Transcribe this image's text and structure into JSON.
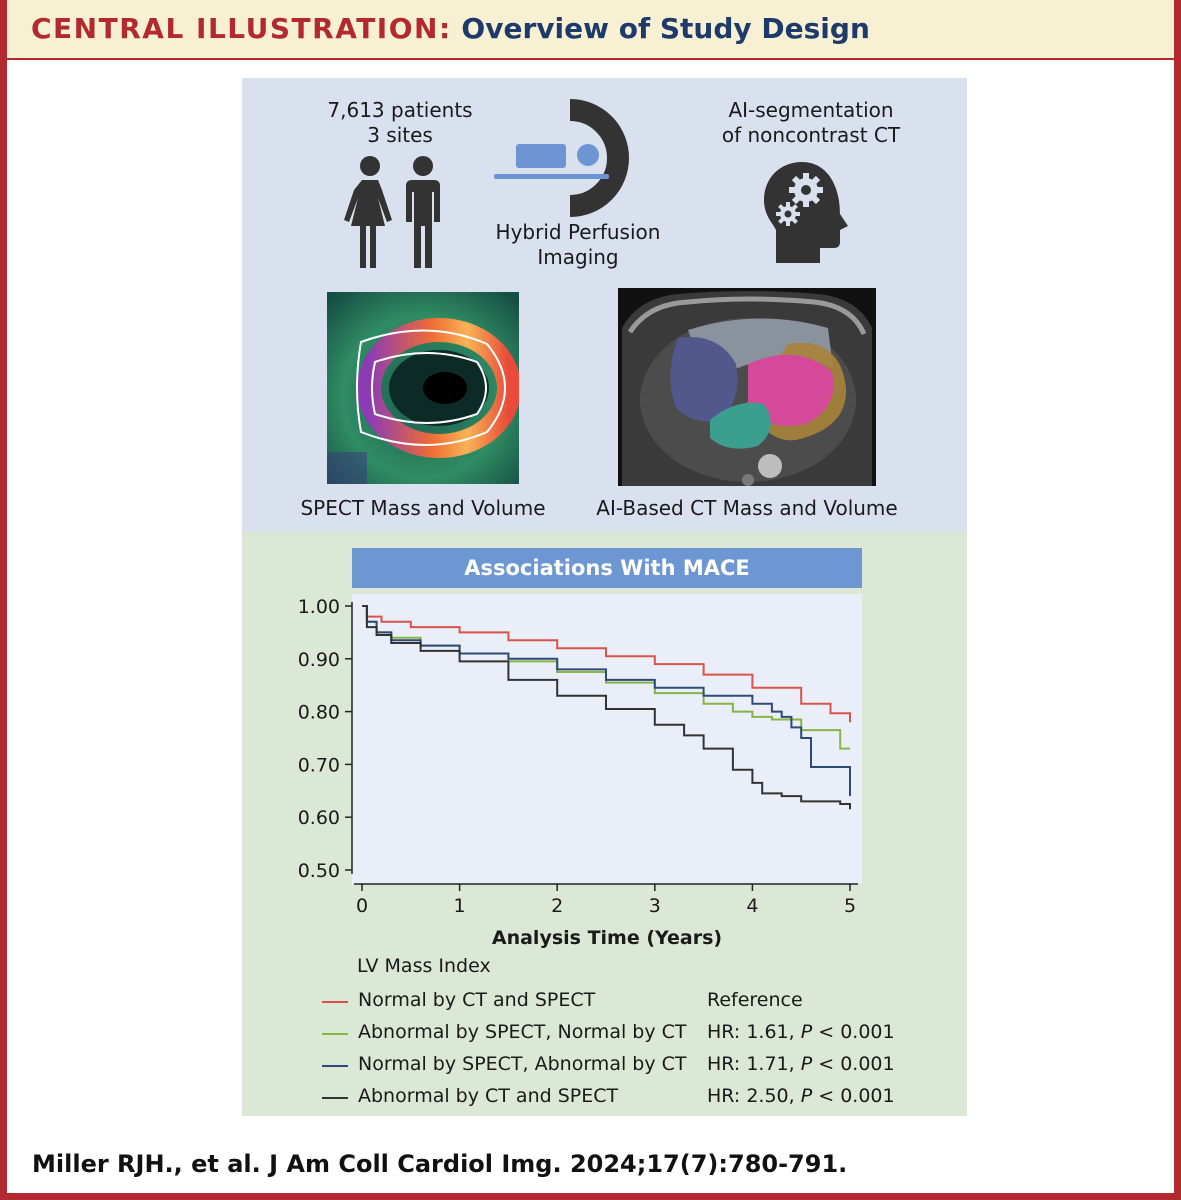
{
  "header": {
    "lead": "CENTRAL ILLUSTRATION:",
    "title": "Overview of Study Design"
  },
  "top_panel": {
    "patients_line1": "7,613 patients",
    "patients_line2": "3 sites",
    "imaging_line1": "Hybrid Perfusion",
    "imaging_line2": "Imaging",
    "ai_line1": "AI-segmentation",
    "ai_line2": "of noncontrast CT",
    "spect_caption": "SPECT Mass and Volume",
    "ct_caption": "AI-Based CT Mass and Volume",
    "icons": [
      "people-icon",
      "scanner-icon",
      "head-gears-icon",
      "spect-image",
      "ct-image"
    ]
  },
  "chart_data": {
    "type": "line",
    "title": "Associations With MACE",
    "xlabel": "Analysis Time (Years)",
    "ylabel": "",
    "xlim": [
      0,
      5
    ],
    "ylim": [
      0.5,
      1.0
    ],
    "x_ticks": [
      0,
      1,
      2,
      3,
      4,
      5
    ],
    "y_ticks": [
      0.5,
      0.6,
      0.7,
      0.8,
      0.9,
      1.0
    ],
    "x_tick_labels": [
      "0",
      "1",
      "2",
      "3",
      "4",
      "5"
    ],
    "y_tick_labels": [
      "0.50",
      "0.60",
      "0.70",
      "0.80",
      "0.90",
      "1.00"
    ],
    "grid": false,
    "step": true,
    "legend_title": "LV Mass Index",
    "legend_position": "bottom",
    "series": [
      {
        "name": "Normal by CT and SPECT",
        "annotation": "Reference",
        "color": "#d9534a",
        "x": [
          0,
          0.05,
          0.2,
          0.5,
          1.0,
          1.5,
          2.0,
          2.5,
          3.0,
          3.5,
          4.0,
          4.5,
          4.8,
          5.0
        ],
        "y": [
          1.0,
          0.98,
          0.97,
          0.96,
          0.95,
          0.935,
          0.92,
          0.905,
          0.89,
          0.87,
          0.845,
          0.815,
          0.797,
          0.78
        ]
      },
      {
        "name": "Abnormal by SPECT, Normal by CT",
        "annotation_prefix": "HR: 1.61, ",
        "annotation_p": "P",
        "annotation_suffix": " < 0.001",
        "color": "#86b544",
        "x": [
          0,
          0.05,
          0.15,
          0.3,
          0.6,
          1.0,
          1.5,
          2.0,
          2.5,
          3.0,
          3.5,
          3.8,
          4.0,
          4.2,
          4.5,
          4.8,
          4.9,
          5.0
        ],
        "y": [
          1.0,
          0.97,
          0.95,
          0.94,
          0.925,
          0.91,
          0.895,
          0.875,
          0.855,
          0.835,
          0.815,
          0.8,
          0.79,
          0.785,
          0.765,
          0.765,
          0.73,
          0.73
        ]
      },
      {
        "name": "Normal by SPECT, Abnormal by CT",
        "annotation_prefix": "HR: 1.71, ",
        "annotation_p": "P",
        "annotation_suffix": " < 0.001",
        "color": "#2d4a7a",
        "x": [
          0,
          0.05,
          0.15,
          0.3,
          0.6,
          1.0,
          1.5,
          2.0,
          2.5,
          3.0,
          3.5,
          4.0,
          4.2,
          4.3,
          4.4,
          4.5,
          4.6,
          4.9,
          5.0
        ],
        "y": [
          1.0,
          0.97,
          0.95,
          0.935,
          0.925,
          0.91,
          0.9,
          0.88,
          0.86,
          0.845,
          0.83,
          0.815,
          0.8,
          0.79,
          0.77,
          0.75,
          0.695,
          0.695,
          0.64
        ]
      },
      {
        "name": "Abnormal by CT and SPECT",
        "annotation_prefix": "HR: 2.50, ",
        "annotation_p": "P",
        "annotation_suffix": " < 0.001",
        "color": "#333333",
        "x": [
          0,
          0.05,
          0.15,
          0.3,
          0.6,
          1.0,
          1.5,
          2.0,
          2.5,
          3.0,
          3.3,
          3.5,
          3.8,
          4.0,
          4.1,
          4.3,
          4.5,
          4.9,
          5.0
        ],
        "y": [
          1.0,
          0.96,
          0.945,
          0.93,
          0.915,
          0.895,
          0.86,
          0.83,
          0.805,
          0.775,
          0.755,
          0.73,
          0.69,
          0.665,
          0.645,
          0.64,
          0.63,
          0.625,
          0.615
        ]
      }
    ]
  },
  "citation": "Miller RJH., et al. J Am Coll Cardiol Img. 2024;17(7):780-791."
}
